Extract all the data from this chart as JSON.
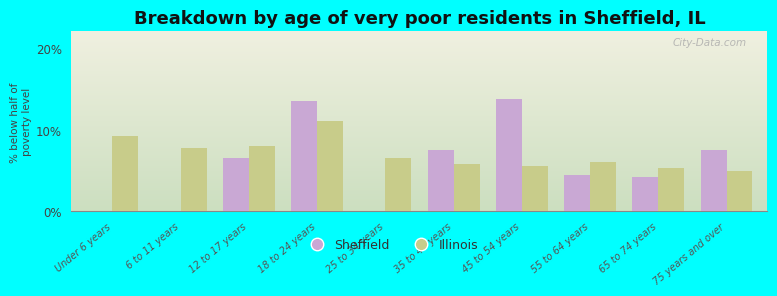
{
  "title": "Breakdown by age of very poor residents in Sheffield, IL",
  "ylabel": "% below half of\npoverty level",
  "categories": [
    "Under 6 years",
    "6 to 11 years",
    "12 to 17 years",
    "18 to 24 years",
    "25 to 34 years",
    "35 to 44 years",
    "45 to 54 years",
    "55 to 64 years",
    "65 to 74 years",
    "75 years and over"
  ],
  "sheffield": [
    0,
    0,
    6.5,
    13.5,
    0,
    7.5,
    13.8,
    4.5,
    4.2,
    7.5
  ],
  "illinois": [
    9.2,
    7.8,
    8.0,
    11.0,
    6.5,
    5.8,
    5.5,
    6.0,
    5.3,
    5.0
  ],
  "sheffield_color": "#c9a8d4",
  "illinois_color": "#c8cc8a",
  "background_color": "#00ffff",
  "plot_bg_top": "#f0f0e0",
  "plot_bg_bottom": "#ccdfc0",
  "ylim": [
    0,
    22
  ],
  "yticks": [
    0,
    10,
    20
  ],
  "ytick_labels": [
    "0%",
    "10%",
    "20%"
  ],
  "bar_width": 0.38,
  "title_fontsize": 13,
  "legend_sheffield": "Sheffield",
  "legend_illinois": "Illinois",
  "watermark": "City-Data.com"
}
